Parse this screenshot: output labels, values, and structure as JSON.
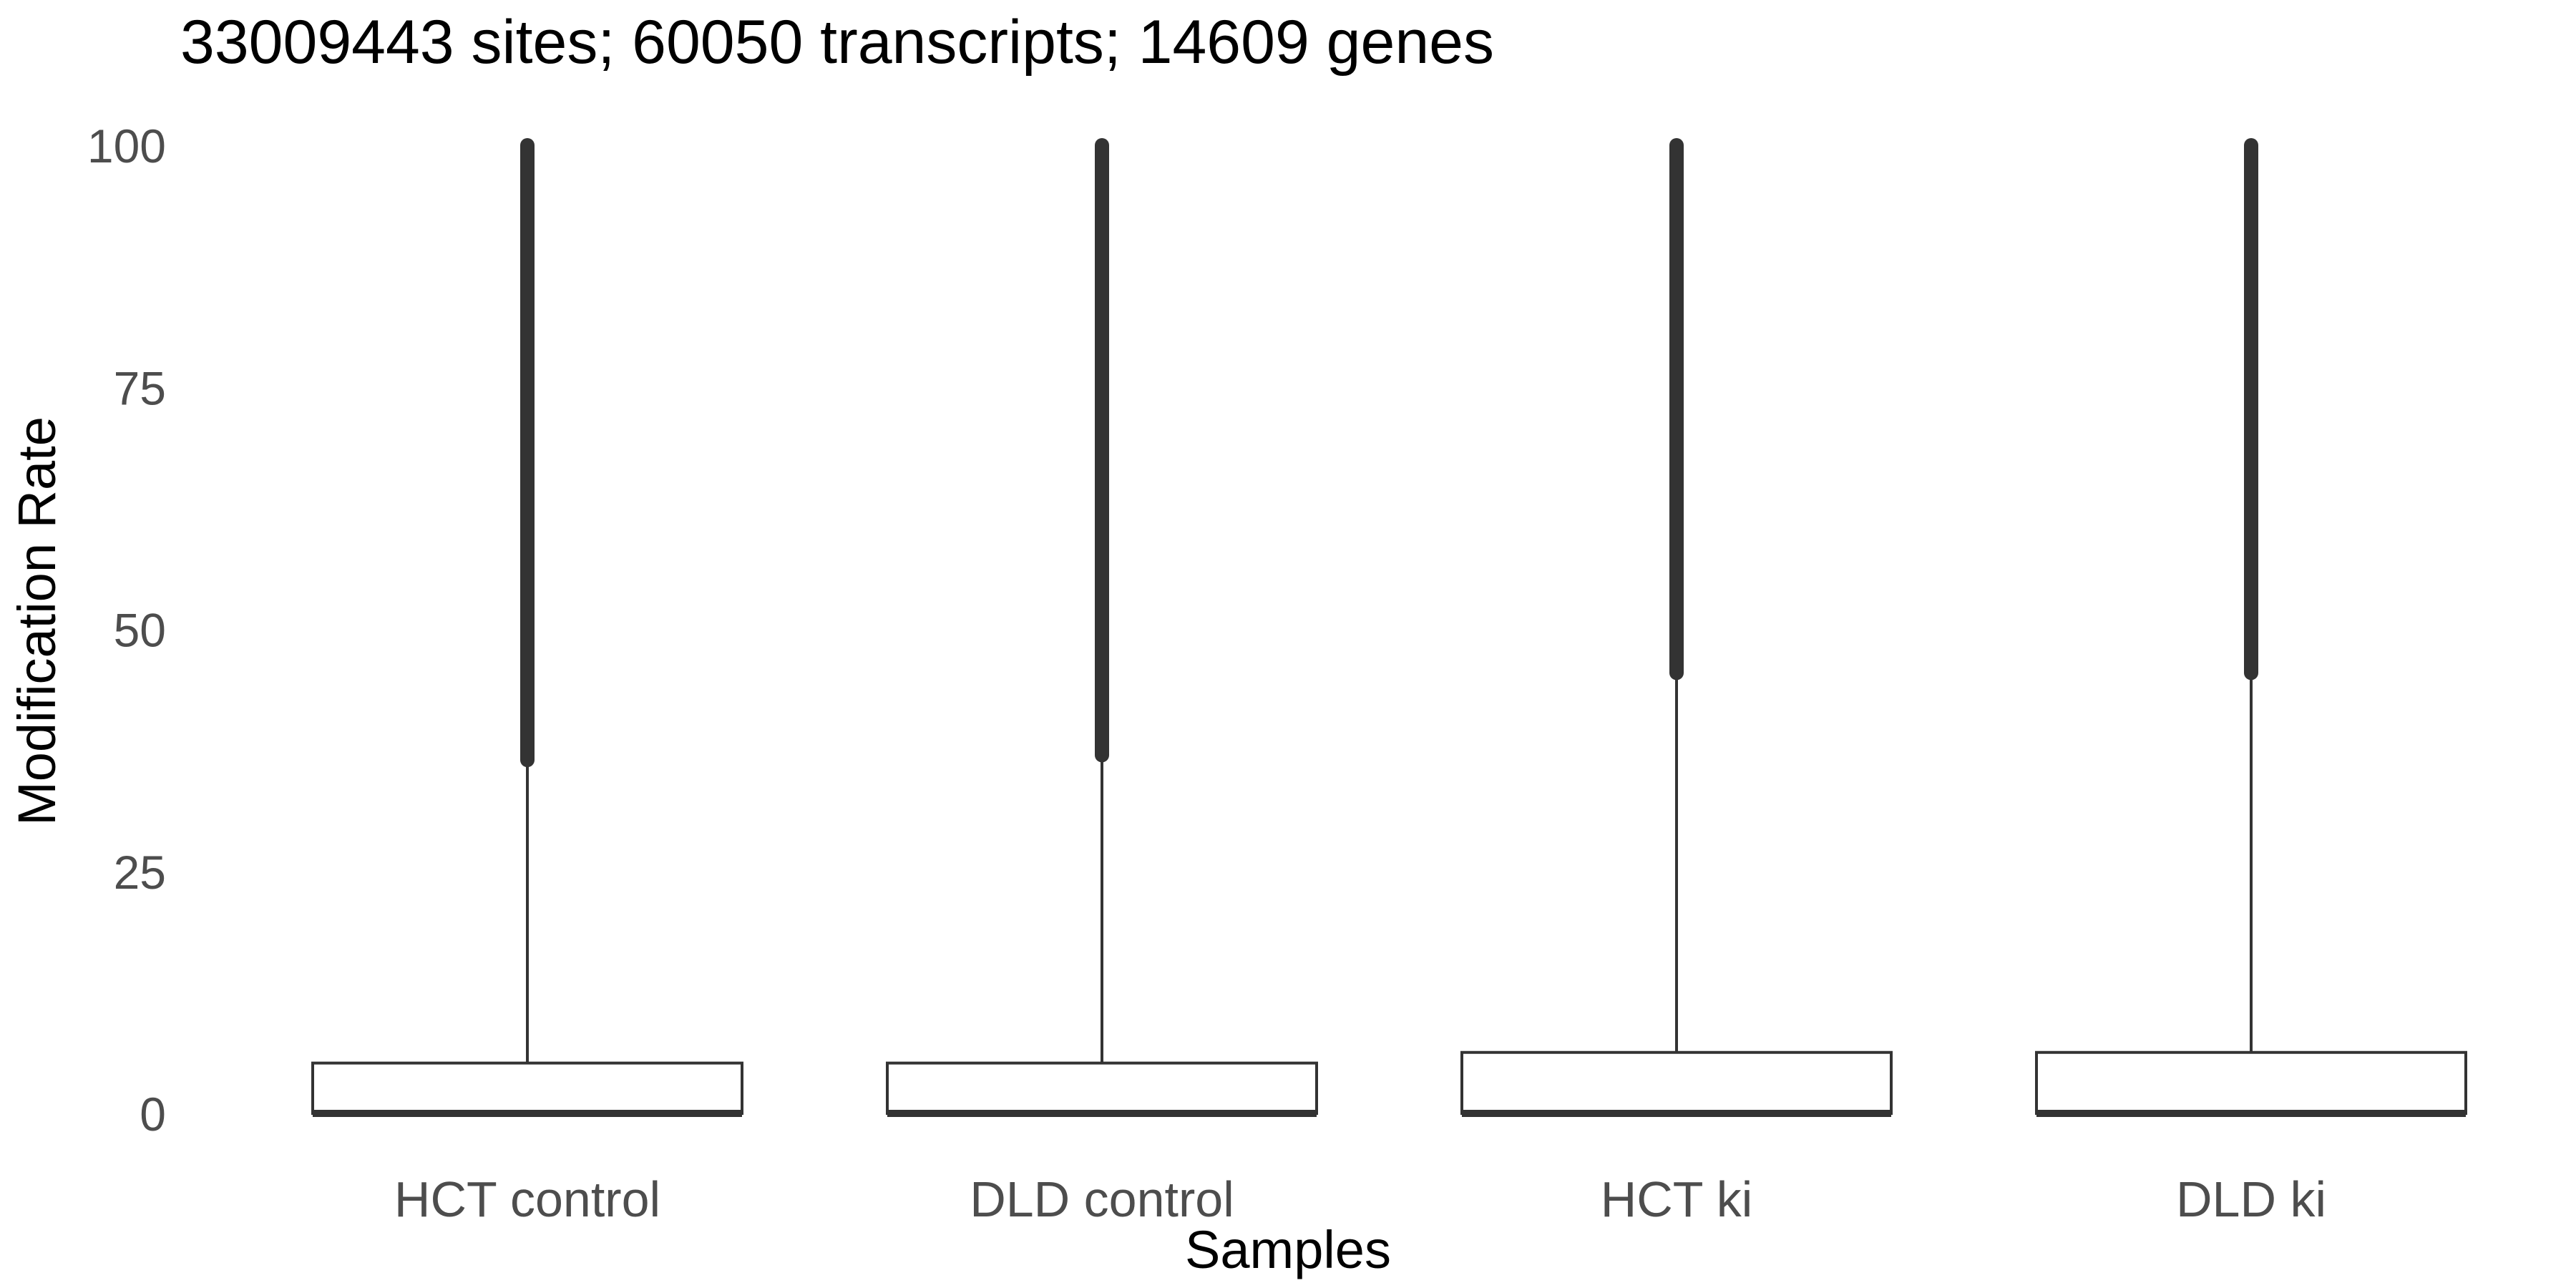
{
  "chart_data": {
    "type": "box",
    "title": "33009443 sites; 60050 transcripts; 14609 genes",
    "xlabel": "Samples",
    "ylabel": "Modification Rate",
    "ylim": [
      0,
      100
    ],
    "yticks": [
      0,
      25,
      50,
      75,
      100
    ],
    "grid": false,
    "categories": [
      "HCT control",
      "DLD control",
      "HCT ki",
      "DLD ki"
    ],
    "boxes": [
      {
        "category": "HCT control",
        "min": 0,
        "q1": 0,
        "median": 0,
        "q3": 5.2,
        "whisker_high": 36.5,
        "outliers_range": [
          36.5,
          100
        ]
      },
      {
        "category": "DLD control",
        "min": 0,
        "q1": 0,
        "median": 0,
        "q3": 5.2,
        "whisker_high": 37.0,
        "outliers_range": [
          37.0,
          100
        ]
      },
      {
        "category": "HCT ki",
        "min": 0,
        "q1": 0,
        "median": 0,
        "q3": 6.3,
        "whisker_high": 45.5,
        "outliers_range": [
          45.5,
          100
        ]
      },
      {
        "category": "DLD ki",
        "min": 0,
        "q1": 0,
        "median": 0,
        "q3": 6.3,
        "whisker_high": 45.5,
        "outliers_range": [
          45.5,
          100
        ]
      }
    ],
    "colors": {
      "box_fill": "#ffffff",
      "line": "#333333",
      "outlier": "#333333",
      "tick_text": "#4d4d4d"
    }
  }
}
